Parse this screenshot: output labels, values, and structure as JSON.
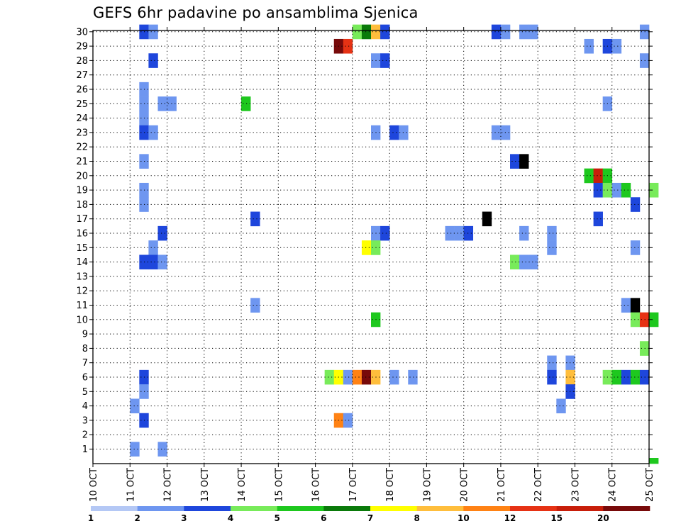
{
  "chart_data": {
    "type": "heatmap",
    "title": "GEFS 6hr padavine po ansamblima Sjenica",
    "xlabel": "",
    "ylabel": "",
    "x_ticks": [
      "10 OCT",
      "11 OCT",
      "12 OCT",
      "13 OCT",
      "14 OCT",
      "15 OCT",
      "16 OCT",
      "17 OCT",
      "18 OCT",
      "19 OCT",
      "20 OCT",
      "21 OCT",
      "22 OCT",
      "23 OCT",
      "24 OCT",
      "25 OCT"
    ],
    "y_ticks": [
      "1",
      "2",
      "3",
      "4",
      "5",
      "6",
      "7",
      "8",
      "9",
      "10",
      "11",
      "12",
      "13",
      "14",
      "15",
      "16",
      "17",
      "18",
      "19",
      "20",
      "21",
      "22",
      "23",
      "24",
      "25",
      "26",
      "27",
      "28",
      "29",
      "30"
    ],
    "time_steps_per_day": 4,
    "colorbar": {
      "labels": [
        "1",
        "2",
        "3",
        "4",
        "5",
        "6",
        "7",
        "8",
        "10",
        "12",
        "15",
        "20"
      ],
      "colors": [
        "#b4c8f5",
        "#6e96f0",
        "#1e46dc",
        "#78eb5a",
        "#1ec81e",
        "#0a7a0a",
        "#ffff00",
        "#ffbe3c",
        "#ff8214",
        "#e63214",
        "#c81e0a",
        "#780a0a"
      ]
    },
    "cells": [
      [
        30,
        5,
        2
      ],
      [
        30,
        6,
        1
      ],
      [
        30,
        28,
        3
      ],
      [
        30,
        29,
        5
      ],
      [
        30,
        30,
        7
      ],
      [
        30,
        31,
        2
      ],
      [
        30,
        43,
        2
      ],
      [
        30,
        44,
        1
      ],
      [
        30,
        46,
        1
      ],
      [
        30,
        47,
        1
      ],
      [
        30,
        59,
        1
      ],
      [
        29,
        26,
        11
      ],
      [
        29,
        27,
        9
      ],
      [
        29,
        53,
        1
      ],
      [
        29,
        55,
        2
      ],
      [
        29,
        56,
        1
      ],
      [
        28,
        6,
        2
      ],
      [
        28,
        30,
        1
      ],
      [
        28,
        31,
        2
      ],
      [
        28,
        59,
        1
      ],
      [
        26,
        5,
        1
      ],
      [
        25,
        5,
        1
      ],
      [
        25,
        7,
        1
      ],
      [
        25,
        8,
        1
      ],
      [
        25,
        16,
        4
      ],
      [
        25,
        55,
        1
      ],
      [
        24,
        5,
        1
      ],
      [
        23,
        5,
        2
      ],
      [
        23,
        6,
        1
      ],
      [
        23,
        30,
        1
      ],
      [
        23,
        32,
        2
      ],
      [
        23,
        33,
        1
      ],
      [
        23,
        43,
        1
      ],
      [
        23,
        44,
        1
      ],
      [
        21,
        5,
        1
      ],
      [
        21,
        45,
        2
      ],
      [
        21,
        46,
        12
      ],
      [
        20,
        53,
        4
      ],
      [
        20,
        54,
        10
      ],
      [
        20,
        55,
        4
      ],
      [
        19,
        5,
        1
      ],
      [
        19,
        54,
        2
      ],
      [
        19,
        55,
        3
      ],
      [
        19,
        56,
        1
      ],
      [
        19,
        57,
        4
      ],
      [
        19,
        60,
        3
      ],
      [
        18,
        5,
        1
      ],
      [
        18,
        58,
        2
      ],
      [
        17,
        17,
        2
      ],
      [
        17,
        42,
        12
      ],
      [
        17,
        54,
        2
      ],
      [
        16,
        7,
        2
      ],
      [
        16,
        30,
        1
      ],
      [
        16,
        31,
        2
      ],
      [
        16,
        38,
        1
      ],
      [
        16,
        39,
        1
      ],
      [
        16,
        40,
        2
      ],
      [
        16,
        46,
        1
      ],
      [
        16,
        49,
        1
      ],
      [
        15,
        6,
        1
      ],
      [
        15,
        29,
        6
      ],
      [
        15,
        30,
        3
      ],
      [
        15,
        49,
        1
      ],
      [
        15,
        58,
        1
      ],
      [
        14,
        5,
        2
      ],
      [
        14,
        6,
        2
      ],
      [
        14,
        7,
        1
      ],
      [
        14,
        45,
        3
      ],
      [
        14,
        46,
        1
      ],
      [
        14,
        47,
        1
      ],
      [
        11,
        17,
        1
      ],
      [
        11,
        57,
        1
      ],
      [
        11,
        58,
        12
      ],
      [
        10,
        30,
        4
      ],
      [
        10,
        58,
        3
      ],
      [
        10,
        59,
        9
      ],
      [
        10,
        60,
        4
      ],
      [
        8,
        59,
        3
      ],
      [
        7,
        49,
        1
      ],
      [
        7,
        51,
        1
      ],
      [
        6,
        5,
        2
      ],
      [
        6,
        25,
        3
      ],
      [
        6,
        26,
        6
      ],
      [
        6,
        27,
        1
      ],
      [
        6,
        28,
        8
      ],
      [
        6,
        29,
        11
      ],
      [
        6,
        30,
        7
      ],
      [
        6,
        32,
        1
      ],
      [
        6,
        34,
        1
      ],
      [
        6,
        49,
        2
      ],
      [
        6,
        51,
        7
      ],
      [
        6,
        55,
        3
      ],
      [
        6,
        56,
        4
      ],
      [
        6,
        57,
        2
      ],
      [
        6,
        58,
        4
      ],
      [
        6,
        59,
        2
      ],
      [
        5,
        5,
        1
      ],
      [
        5,
        51,
        2
      ],
      [
        4,
        4,
        1
      ],
      [
        4,
        50,
        1
      ],
      [
        3,
        5,
        2
      ],
      [
        3,
        26,
        8
      ],
      [
        3,
        27,
        1
      ],
      [
        1,
        4,
        1
      ],
      [
        1,
        7,
        1
      ],
      [
        0,
        60,
        4
      ]
    ]
  }
}
